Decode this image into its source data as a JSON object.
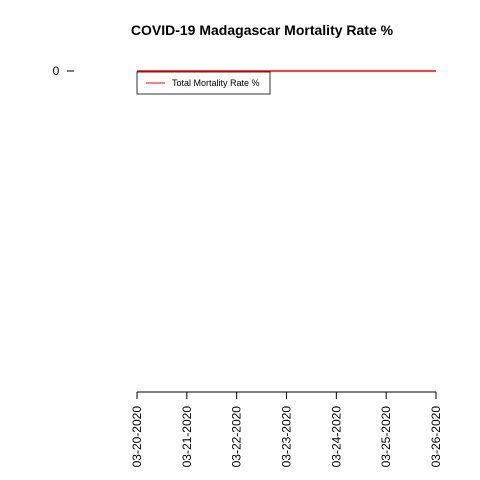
{
  "chart_data": {
    "type": "line",
    "title": "COVID-19 Madagascar Mortality Rate %",
    "xlabel": "",
    "ylabel": "",
    "categories": [
      "03-20-2020",
      "03-21-2020",
      "03-22-2020",
      "03-23-2020",
      "03-24-2020",
      "03-25-2020",
      "03-26-2020"
    ],
    "y_ticks": [
      0
    ],
    "series": [
      {
        "name": "Total Mortality Rate %",
        "values": [
          0,
          0,
          0,
          0,
          0,
          0,
          0
        ],
        "color": "#ff0000"
      }
    ],
    "legend": {
      "position": "top-left"
    },
    "grid": false
  }
}
